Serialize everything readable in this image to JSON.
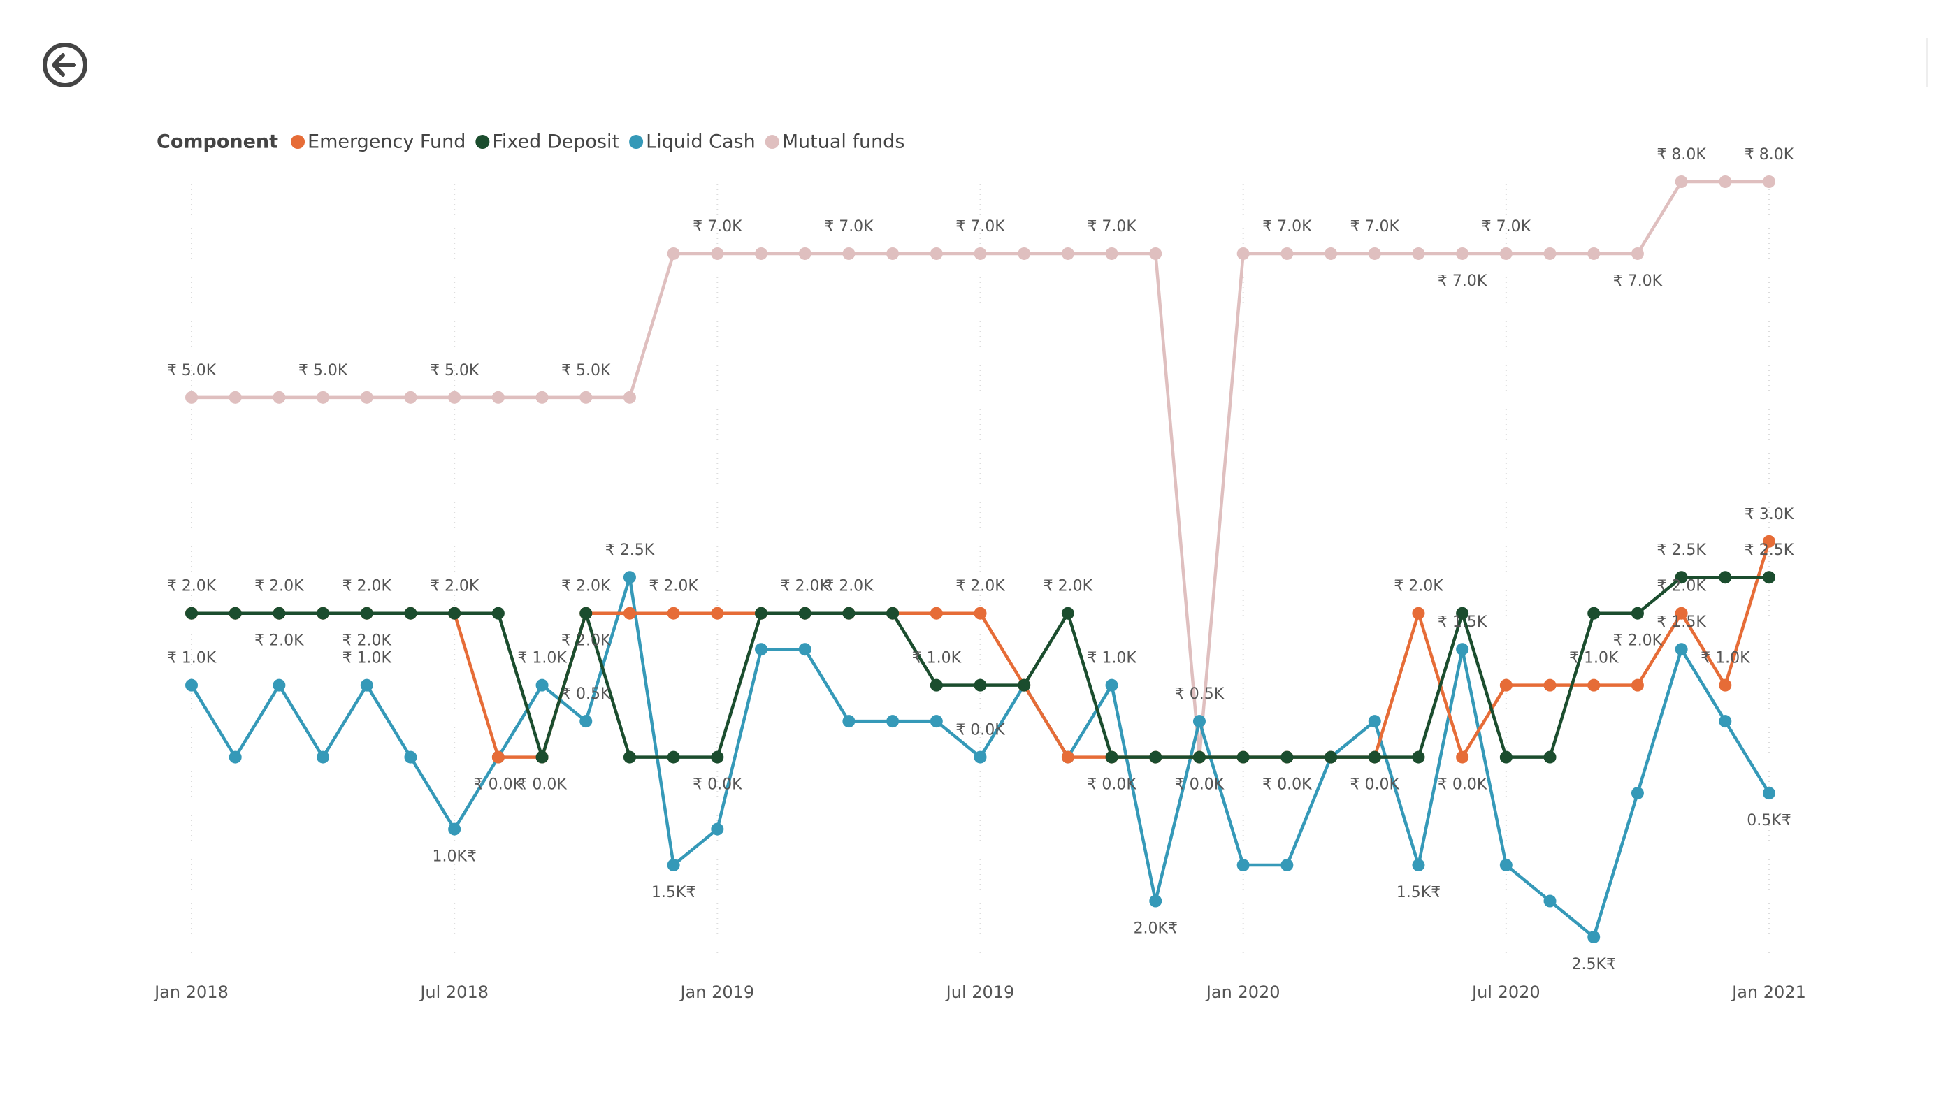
{
  "chart_data": {
    "type": "line",
    "legend_title": "Component",
    "x": [
      "2018-01",
      "2018-02",
      "2018-03",
      "2018-04",
      "2018-05",
      "2018-06",
      "2018-07",
      "2018-08",
      "2018-09",
      "2018-10",
      "2018-11",
      "2018-12",
      "2019-01",
      "2019-02",
      "2019-03",
      "2019-04",
      "2019-05",
      "2019-06",
      "2019-07",
      "2019-08",
      "2019-09",
      "2019-10",
      "2019-11",
      "2019-12",
      "2020-01",
      "2020-02",
      "2020-03",
      "2020-04",
      "2020-05",
      "2020-06",
      "2020-07",
      "2020-08",
      "2020-09",
      "2020-10",
      "2020-11",
      "2020-12",
      "2021-01"
    ],
    "xlim": [
      "2018-01",
      "2021-01"
    ],
    "xticks": [
      {
        "value": "2018-01",
        "label": "Jan 2018"
      },
      {
        "value": "2018-07",
        "label": "Jul 2018"
      },
      {
        "value": "2019-01",
        "label": "Jan 2019"
      },
      {
        "value": "2019-07",
        "label": "Jul 2019"
      },
      {
        "value": "2020-01",
        "label": "Jan 2020"
      },
      {
        "value": "2020-07",
        "label": "Jul 2020"
      },
      {
        "value": "2021-01",
        "label": "Jan 2021"
      }
    ],
    "ylim": [
      -2500,
      8000
    ],
    "grid": true,
    "legend": "top-left",
    "series": [
      {
        "name": "Mutual funds",
        "color": "#dfbfbf",
        "values": [
          5000,
          5000,
          5000,
          5000,
          5000,
          5000,
          5000,
          5000,
          5000,
          5000,
          5000,
          7000,
          7000,
          7000,
          7000,
          7000,
          7000,
          7000,
          7000,
          7000,
          7000,
          7000,
          7000,
          0,
          7000,
          7000,
          7000,
          7000,
          7000,
          7000,
          7000,
          7000,
          7000,
          7000,
          8000,
          8000,
          8000
        ],
        "value_labels": [
          "₹ 5.0K",
          null,
          null,
          "₹ 5.0K",
          null,
          null,
          "₹ 5.0K",
          null,
          null,
          "₹ 5.0K",
          null,
          null,
          "₹ 7.0K",
          null,
          null,
          "₹ 7.0K",
          null,
          null,
          "₹ 7.0K",
          null,
          null,
          "₹ 7.0K",
          null,
          "₹ 0.0K",
          null,
          "₹ 7.0K",
          null,
          "₹ 7.0K",
          null,
          "₹ 7.0K",
          "₹ 7.0K",
          null,
          null,
          "₹ 7.0K",
          "₹ 8.0K",
          null,
          "₹ 8.0K"
        ]
      },
      {
        "name": "Emergency Fund",
        "color": "#e66c37",
        "values": [
          2000,
          2000,
          2000,
          2000,
          2000,
          2000,
          2000,
          0,
          0,
          2000,
          2000,
          2000,
          2000,
          2000,
          2000,
          2000,
          2000,
          2000,
          2000,
          1000,
          0,
          0,
          0,
          0,
          0,
          0,
          0,
          0,
          2000,
          0,
          1000,
          1000,
          1000,
          1000,
          2000,
          1000,
          3000
        ],
        "value_labels": [
          null,
          null,
          "₹ 2.0K",
          null,
          "₹ 2.0K",
          null,
          null,
          "₹ 0.0K",
          null,
          "₹ 2.0K",
          null,
          "₹ 2.0K",
          null,
          null,
          null,
          "₹ 2.0K",
          null,
          null,
          "₹ 2.0K",
          null,
          null,
          null,
          null,
          null,
          null,
          "₹ 0.0K",
          null,
          null,
          "₹ 2.0K",
          "₹ 0.0K",
          null,
          null,
          "₹ 1.0K",
          null,
          "₹ 2.0K",
          "₹ 1.0K",
          "₹ 3.0K"
        ]
      },
      {
        "name": "Fixed Deposit",
        "color": "#1b4d2e",
        "values": [
          2000,
          2000,
          2000,
          2000,
          2000,
          2000,
          2000,
          2000,
          0,
          2000,
          0,
          0,
          0,
          2000,
          2000,
          2000,
          2000,
          1000,
          1000,
          1000,
          2000,
          0,
          0,
          0,
          0,
          0,
          0,
          0,
          0,
          2000,
          0,
          0,
          2000,
          2000,
          2500,
          2500,
          2500
        ],
        "value_labels": [
          "₹ 2.0K",
          null,
          "₹ 2.0K",
          null,
          "₹ 2.0K",
          null,
          "₹ 2.0K",
          null,
          "₹ 0.0K",
          "₹ 2.0K",
          null,
          null,
          "₹ 0.0K",
          null,
          "₹ 2.0K",
          null,
          null,
          "₹ 1.0K",
          null,
          null,
          "₹ 2.0K",
          "₹ 0.0K",
          null,
          "₹ 0.0K",
          null,
          "₹ 0.0K",
          null,
          "₹ 0.0K",
          null,
          null,
          null,
          null,
          null,
          "₹ 2.0K",
          "₹ 2.5K",
          null,
          "₹ 2.5K"
        ]
      },
      {
        "name": "Liquid Cash",
        "color": "#3599b8",
        "values": [
          1000,
          0,
          1000,
          0,
          1000,
          0,
          -1000,
          0,
          1000,
          500,
          2500,
          -1500,
          -1000,
          1500,
          1500,
          500,
          500,
          500,
          0,
          1000,
          0,
          1000,
          -2000,
          500,
          -1500,
          -1500,
          0,
          500,
          -1500,
          1500,
          -1500,
          -2000,
          -2500,
          -500,
          1500,
          500,
          -500
        ],
        "value_labels": [
          "₹ 1.0K",
          null,
          null,
          null,
          "₹ 1.0K",
          null,
          "1.0K₹",
          null,
          "₹ 1.0K",
          "₹ 0.5K",
          "₹ 2.5K",
          "1.5K₹",
          null,
          null,
          null,
          null,
          null,
          null,
          "₹ 0.0K",
          null,
          null,
          "₹ 1.0K",
          "2.0K₹",
          "₹ 0.5K",
          null,
          null,
          null,
          null,
          "1.5K₹",
          "₹ 1.5K",
          null,
          null,
          "2.5K₹",
          null,
          "₹ 1.5K",
          null,
          "0.5K₹"
        ]
      }
    ]
  }
}
